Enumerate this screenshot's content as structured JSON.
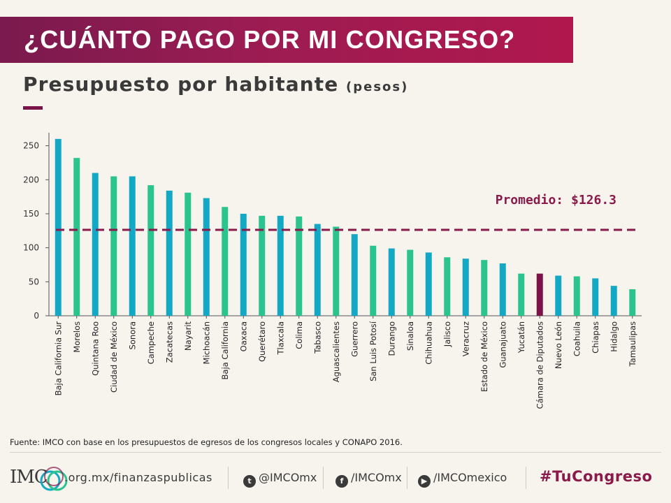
{
  "header": {
    "title": "¿CUÁNTO PAGO POR MI CONGRESO?",
    "subtitle": "Presupuesto por habitante",
    "subtitle_unit": "(pesos)"
  },
  "colors": {
    "blue": "#13a8c3",
    "green": "#2bc48e",
    "highlight": "#7a1448",
    "average_line": "#8a1a4a",
    "banner": "#9c1c52"
  },
  "chart_data": {
    "type": "bar",
    "title": "Presupuesto por habitante (pesos)",
    "xlabel": "",
    "ylabel": "",
    "ylim": [
      0,
      265
    ],
    "yticks": [
      0,
      50,
      100,
      150,
      200,
      250
    ],
    "grid": false,
    "categories": [
      "Baja California Sur",
      "Morelos",
      "Quintana Roo",
      "Ciudad de México",
      "Sonora",
      "Campeche",
      "Zacatecas",
      "Nayarit",
      "Michoacán",
      "Baja California",
      "Oaxaca",
      "Querétaro",
      "Tlaxcala",
      "Colima",
      "Tabasco",
      "Aguascalientes",
      "Guerrero",
      "San Luis Potosí",
      "Durango",
      "Sinaloa",
      "Chihuahua",
      "Jalisco",
      "Veracruz",
      "Estado de México",
      "Guanajuato",
      "Yucatán",
      "Cámara de Diputados",
      "Nuevo León",
      "Coahuila",
      "Chiapas",
      "Hidalgo",
      "Tamaulipas"
    ],
    "values": [
      260,
      232,
      210,
      205,
      205,
      192,
      184,
      181,
      173,
      160,
      150,
      147,
      147,
      146,
      135,
      131,
      120,
      103,
      99,
      97,
      93,
      86,
      84,
      82,
      77,
      62,
      62,
      59,
      58,
      55,
      44,
      39
    ],
    "bar_colors": [
      "blue",
      "green",
      "blue",
      "green",
      "blue",
      "green",
      "blue",
      "green",
      "blue",
      "green",
      "blue",
      "green",
      "blue",
      "green",
      "blue",
      "green",
      "blue",
      "green",
      "blue",
      "green",
      "blue",
      "green",
      "blue",
      "green",
      "blue",
      "green",
      "highlight",
      "blue",
      "green",
      "blue",
      "blue",
      "green"
    ],
    "average": {
      "value": 126.3,
      "label": "Promedio: $126.3"
    }
  },
  "source": "Fuente: IMCO con base en los presupuestos  de egresos de los congresos locales y CONAPO 2016.",
  "footer": {
    "logo_text": "IMC",
    "website": ".org.mx/finanzaspublicas",
    "twitter": "@IMCOmx",
    "facebook": "/IMCOmx",
    "youtube": "/IMCOmexico",
    "hashtag_prefix": "#Tu",
    "hashtag_bold": "Congreso",
    "twitter_icon": "twitter-icon",
    "facebook_icon": "facebook-icon",
    "youtube_icon": "youtube-icon"
  }
}
